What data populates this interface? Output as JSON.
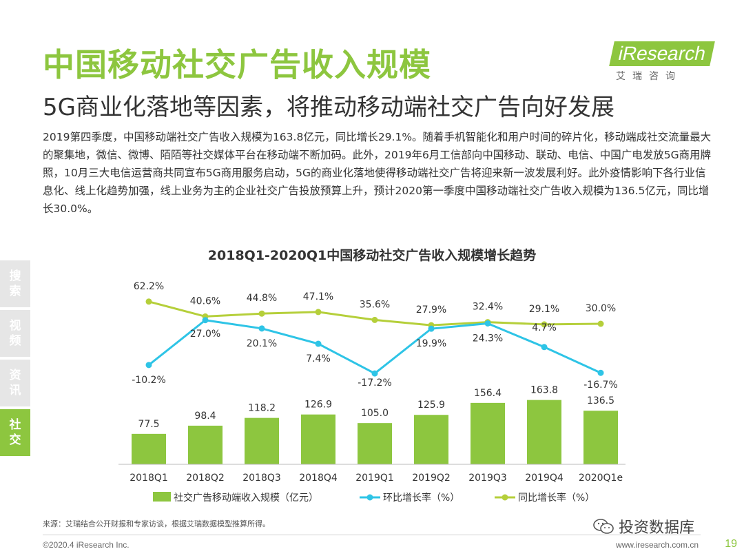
{
  "header": {
    "title": "中国移动社交广告收入规模",
    "subtitle": "5G商业化落地等因素，将推动移动端社交广告向好发展"
  },
  "logo": {
    "name": "iResearch",
    "sub": "艾瑞咨询"
  },
  "body_text": "2019第四季度，中国移动端社交广告收入规模为163.8亿元，同比增长29.1%。随着手机智能化和用户时间的碎片化，移动端成社交流量最大的聚集地，微信、微博、陌陌等社交媒体平台在移动端不断加码。此外，2019年6月工信部向中国移动、联动、电信、中国广电发放5G商用牌照，10月三大电信运营商共同宣布5G商用服务启动，5G的商业化落地使得移动端社交广告将迎来新一波发展利好。此外疫情影响下各行业信息化、线上化趋势加强，线上业务为主的企业社交广告投放预算上升，预计2020第一季度中国移动端社交广告收入规模为136.5亿元，同比增长30.0%。",
  "side_tabs": [
    {
      "label": "搜\n索",
      "active": false
    },
    {
      "label": "视\n频",
      "active": false
    },
    {
      "label": "资\n讯",
      "active": false
    },
    {
      "label": "社\n交",
      "active": true
    }
  ],
  "chart_data": {
    "type": "bar",
    "title": "2018Q1-2020Q1中国移动社交广告收入规模增长趋势",
    "categories": [
      "2018Q1",
      "2018Q2",
      "2018Q3",
      "2018Q4",
      "2019Q1",
      "2019Q2",
      "2019Q3",
      "2019Q4",
      "2020Q1e"
    ],
    "series": [
      {
        "name": "社交广告移动端收入规模（亿元）",
        "type": "bar",
        "color": "#8dc63f",
        "values": [
          77.5,
          98.4,
          118.2,
          126.9,
          105.0,
          125.9,
          156.4,
          163.8,
          136.5
        ],
        "labels": [
          "77.5",
          "98.4",
          "118.2",
          "126.9",
          "105.0",
          "125.9",
          "156.4",
          "163.8",
          "136.5"
        ]
      },
      {
        "name": "环比增长率（%）",
        "type": "line",
        "color": "#2ec4e6",
        "values": [
          -10.2,
          27.0,
          20.1,
          7.4,
          -17.2,
          19.9,
          24.3,
          4.7,
          -16.7
        ],
        "labels": [
          "-10.2%",
          "27.0%",
          "20.1%",
          "7.4%",
          "-17.2%",
          "19.9%",
          "24.3%",
          "4.7%",
          "-16.7%"
        ]
      },
      {
        "name": "同比增长率（%）",
        "type": "line",
        "color": "#b5cf3a",
        "values": [
          62.2,
          40.6,
          44.8,
          47.1,
          35.6,
          27.9,
          32.4,
          29.1,
          30.0
        ],
        "labels": [
          "62.2%",
          "40.6%",
          "44.8%",
          "47.1%",
          "35.6%",
          "27.9%",
          "32.4%",
          "29.1%",
          "30.0%"
        ]
      }
    ]
  },
  "source": "来源：艾瑞结合公开财报和专家访谈，根据艾瑞数据模型推算所得。",
  "footer": {
    "copyright": "©2020.4 iResearch Inc.",
    "site": "www.iresearch.com.cn",
    "page": "19"
  },
  "watermark": {
    "text": "投资数据库",
    "icon": "wechat-icon"
  }
}
